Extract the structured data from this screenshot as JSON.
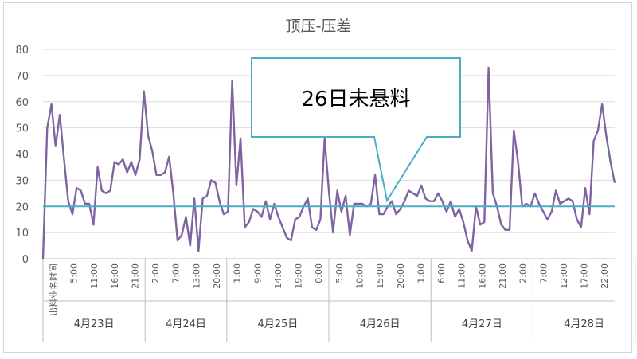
{
  "chart_data": {
    "type": "line",
    "title": "顶压-压差",
    "ylim": [
      0,
      80
    ],
    "yticks": [
      0,
      10,
      20,
      30,
      40,
      50,
      60,
      70,
      80
    ],
    "grid": true,
    "series": [
      {
        "color": "#8064a2",
        "values": [
          0,
          50,
          59,
          43,
          55,
          38,
          22,
          17,
          27,
          26,
          21,
          21,
          13,
          35,
          26,
          25,
          26,
          37,
          36,
          38,
          33,
          37,
          32,
          38,
          64,
          47,
          41,
          32,
          32,
          33,
          39,
          25,
          7,
          9,
          16,
          5,
          23,
          3,
          23,
          24,
          30,
          29,
          22,
          17,
          18,
          68,
          28,
          46,
          12,
          14,
          19,
          18,
          16,
          22,
          15,
          21,
          16,
          12,
          8,
          7,
          15,
          16,
          20,
          23,
          12,
          11,
          15,
          46,
          26,
          10,
          26,
          18,
          24,
          9,
          21,
          21,
          21,
          20,
          21,
          32,
          17,
          17,
          20,
          22,
          17,
          19,
          22,
          26,
          25,
          24,
          28,
          23,
          22,
          22,
          25,
          22,
          18,
          22,
          16,
          19,
          14,
          7,
          3,
          20,
          13,
          14,
          73,
          25,
          20,
          13,
          11,
          11,
          49,
          37,
          20,
          21,
          20,
          25,
          21,
          18,
          15,
          18,
          26,
          21,
          22,
          23,
          22,
          15,
          12,
          27,
          17,
          45,
          49,
          59,
          47,
          37,
          29
        ]
      },
      {
        "color": "#4bacc6",
        "values": [
          20,
          20
        ]
      }
    ],
    "xticks": {
      "first_label": "出料业务时间",
      "hour_labels": [
        "5:00",
        "11:00",
        "16:00",
        "21:00",
        "2:00",
        "7:00",
        "13:00",
        "20:00",
        "1:00",
        "9:00",
        "14:00",
        "19:00",
        "0:00",
        "5:00",
        "10:00",
        "15:00",
        "20:00",
        "1:00",
        "6:00",
        "11:00",
        "16:00",
        "21:00",
        "2:00",
        "7:00",
        "12:00",
        "17:00",
        "22:00"
      ],
      "days": [
        "4月23日",
        "4月24日",
        "4月25日",
        "4月26日",
        "4月27日",
        "4月28日"
      ]
    },
    "annotation": "26日未悬料"
  }
}
